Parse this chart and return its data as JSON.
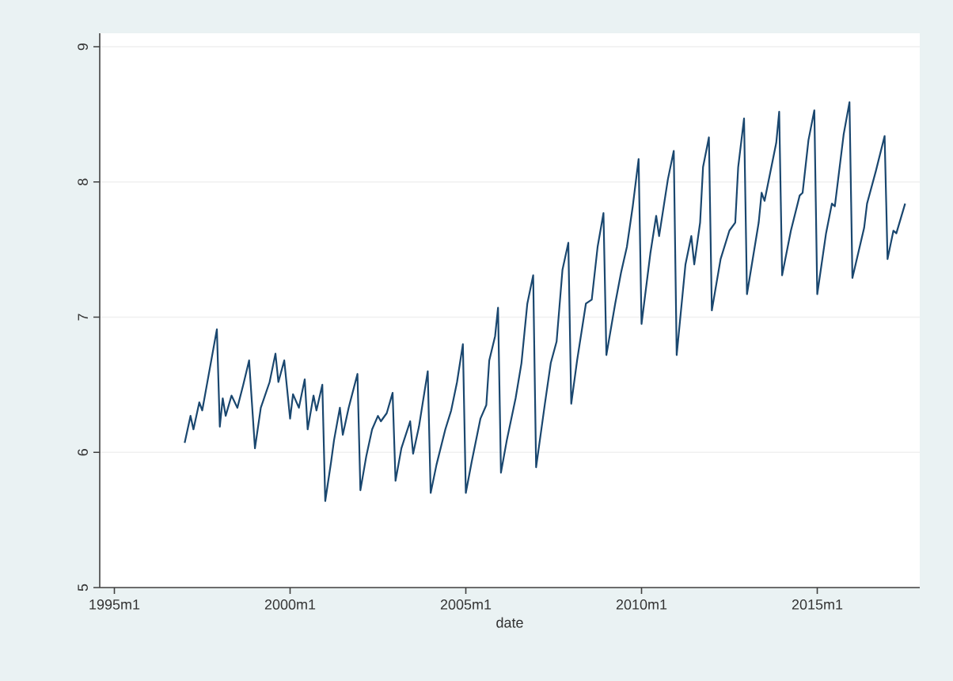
{
  "chart_data": {
    "type": "line",
    "xlabel": "date",
    "x": [
      "1997-01",
      "1997-03",
      "1997-04",
      "1997-06",
      "1997-07",
      "1997-12",
      "1998-01",
      "1998-02",
      "1998-03",
      "1998-05",
      "1998-07",
      "1998-09",
      "1998-11",
      "1999-01",
      "1999-03",
      "1999-06",
      "1999-08",
      "1999-09",
      "1999-11",
      "2000-01",
      "2000-02",
      "2000-04",
      "2000-06",
      "2000-07",
      "2000-09",
      "2000-10",
      "2000-12",
      "2001-01",
      "2001-03",
      "2001-04",
      "2001-06",
      "2001-07",
      "2001-09",
      "2001-12",
      "2002-01",
      "2002-03",
      "2002-05",
      "2002-07",
      "2002-08",
      "2002-10",
      "2002-12",
      "2003-01",
      "2003-03",
      "2003-06",
      "2003-07",
      "2003-09",
      "2003-12",
      "2004-01",
      "2004-03",
      "2004-06",
      "2004-08",
      "2004-10",
      "2004-12",
      "2005-01",
      "2005-03",
      "2005-06",
      "2005-08",
      "2005-09",
      "2005-11",
      "2005-12",
      "2006-01",
      "2006-03",
      "2006-06",
      "2006-08",
      "2006-10",
      "2006-12",
      "2007-01",
      "2007-04",
      "2007-06",
      "2007-08",
      "2007-10",
      "2007-12",
      "2008-01",
      "2008-03",
      "2008-06",
      "2008-08",
      "2008-10",
      "2008-12",
      "2009-01",
      "2009-04",
      "2009-06",
      "2009-08",
      "2009-10",
      "2009-12",
      "2010-01",
      "2010-04",
      "2010-06",
      "2010-07",
      "2010-10",
      "2010-12",
      "2011-01",
      "2011-04",
      "2011-06",
      "2011-07",
      "2011-09",
      "2011-10",
      "2011-12",
      "2012-01",
      "2012-04",
      "2012-07",
      "2012-09",
      "2012-10",
      "2012-12",
      "2013-01",
      "2013-05",
      "2013-06",
      "2013-07",
      "2013-11",
      "2013-12",
      "2014-01",
      "2014-04",
      "2014-07",
      "2014-08",
      "2014-10",
      "2014-12",
      "2015-01",
      "2015-04",
      "2015-06",
      "2015-07",
      "2015-10",
      "2015-12",
      "2016-01",
      "2016-05",
      "2016-06",
      "2016-09",
      "2016-12",
      "2017-01",
      "2017-03",
      "2017-04",
      "2017-07"
    ],
    "values": [
      6.07,
      6.27,
      6.17,
      6.37,
      6.31,
      6.91,
      6.19,
      6.4,
      6.27,
      6.42,
      6.33,
      6.5,
      6.68,
      6.03,
      6.33,
      6.52,
      6.73,
      6.52,
      6.68,
      6.25,
      6.43,
      6.33,
      6.54,
      6.17,
      6.42,
      6.31,
      6.5,
      5.64,
      5.93,
      6.09,
      6.33,
      6.13,
      6.33,
      6.58,
      5.72,
      5.97,
      6.17,
      6.27,
      6.23,
      6.29,
      6.44,
      5.79,
      6.03,
      6.23,
      5.99,
      6.19,
      6.6,
      5.7,
      5.91,
      6.17,
      6.31,
      6.52,
      6.8,
      5.7,
      5.93,
      6.25,
      6.35,
      6.68,
      6.86,
      7.07,
      5.85,
      6.09,
      6.4,
      6.66,
      7.1,
      7.31,
      5.89,
      6.36,
      6.66,
      6.82,
      7.35,
      7.55,
      6.36,
      6.68,
      7.1,
      7.13,
      7.52,
      7.77,
      6.72,
      7.1,
      7.33,
      7.52,
      7.82,
      8.17,
      6.95,
      7.47,
      7.75,
      7.6,
      8.02,
      8.23,
      6.72,
      7.39,
      7.6,
      7.39,
      7.7,
      8.11,
      8.33,
      7.05,
      7.43,
      7.64,
      7.7,
      8.11,
      8.47,
      7.17,
      7.7,
      7.92,
      7.86,
      8.29,
      8.52,
      7.31,
      7.64,
      7.9,
      7.92,
      8.31,
      8.53,
      7.17,
      7.62,
      7.84,
      7.82,
      8.35,
      8.59,
      7.29,
      7.66,
      7.84,
      8.08,
      8.34,
      7.43,
      7.64,
      7.62,
      7.84
    ],
    "color": "#1a476f",
    "xlim": [
      "1994-08",
      "2017-12"
    ],
    "xticks": [
      {
        "value": "1995-01",
        "label": "1995m1"
      },
      {
        "value": "2000-01",
        "label": "2000m1"
      },
      {
        "value": "2005-01",
        "label": "2005m1"
      },
      {
        "value": "2010-01",
        "label": "2010m1"
      },
      {
        "value": "2015-01",
        "label": "2015m1"
      }
    ],
    "ylim": [
      5,
      9.1
    ],
    "yticks": [
      5,
      6,
      7,
      8,
      9
    ],
    "grid": "y",
    "marker": "none",
    "line_style": "solid"
  }
}
